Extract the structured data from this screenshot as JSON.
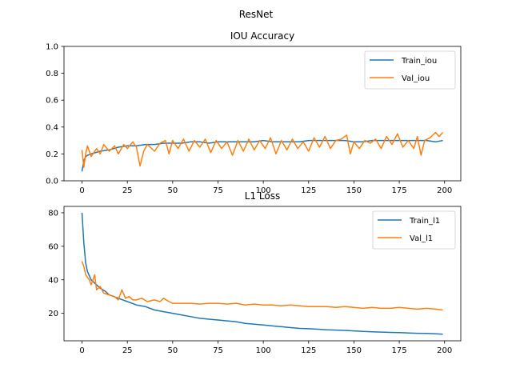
{
  "figure": {
    "suptitle": "ResNet"
  },
  "chart_data": [
    {
      "type": "line",
      "title": "IOU Accuracy",
      "xlabel": "",
      "ylabel": "",
      "xlim": [
        -9.95,
        208.95
      ],
      "ylim": [
        0.0,
        1.0
      ],
      "xticks": [
        0,
        25,
        50,
        75,
        100,
        125,
        150,
        175,
        200
      ],
      "yticks": [
        0.0,
        0.2,
        0.4,
        0.6,
        0.8,
        1.0
      ],
      "xtick_labels": [
        "0",
        "25",
        "50",
        "75",
        "100",
        "125",
        "150",
        "175",
        "200"
      ],
      "ytick_labels": [
        "0.0",
        "0.2",
        "0.4",
        "0.6",
        "0.8",
        "1.0"
      ],
      "grid": false,
      "legend": "upper-right",
      "series": [
        {
          "name": "Train_iou",
          "color": "#1f77b4",
          "points": [
            [
              0,
              0.07
            ],
            [
              1,
              0.15
            ],
            [
              2,
              0.18
            ],
            [
              3,
              0.19
            ],
            [
              5,
              0.2
            ],
            [
              10,
              0.22
            ],
            [
              15,
              0.23
            ],
            [
              20,
              0.25
            ],
            [
              25,
              0.26
            ],
            [
              30,
              0.26
            ],
            [
              35,
              0.27
            ],
            [
              40,
              0.27
            ],
            [
              45,
              0.28
            ],
            [
              50,
              0.28
            ],
            [
              55,
              0.28
            ],
            [
              60,
              0.29
            ],
            [
              65,
              0.29
            ],
            [
              70,
              0.28
            ],
            [
              75,
              0.29
            ],
            [
              80,
              0.29
            ],
            [
              85,
              0.29
            ],
            [
              90,
              0.29
            ],
            [
              95,
              0.29
            ],
            [
              100,
              0.3
            ],
            [
              105,
              0.29
            ],
            [
              110,
              0.29
            ],
            [
              115,
              0.29
            ],
            [
              120,
              0.29
            ],
            [
              125,
              0.3
            ],
            [
              130,
              0.3
            ],
            [
              135,
              0.3
            ],
            [
              140,
              0.3
            ],
            [
              145,
              0.3
            ],
            [
              150,
              0.29
            ],
            [
              155,
              0.29
            ],
            [
              160,
              0.3
            ],
            [
              165,
              0.3
            ],
            [
              170,
              0.3
            ],
            [
              175,
              0.3
            ],
            [
              180,
              0.3
            ],
            [
              185,
              0.3
            ],
            [
              190,
              0.3
            ],
            [
              195,
              0.29
            ],
            [
              199,
              0.3
            ]
          ]
        },
        {
          "name": "Val_iou",
          "color": "#ff7f0e",
          "points": [
            [
              0,
              0.23
            ],
            [
              1,
              0.1
            ],
            [
              2,
              0.2
            ],
            [
              3,
              0.26
            ],
            [
              5,
              0.18
            ],
            [
              8,
              0.24
            ],
            [
              10,
              0.2
            ],
            [
              12,
              0.27
            ],
            [
              15,
              0.22
            ],
            [
              18,
              0.26
            ],
            [
              20,
              0.2
            ],
            [
              23,
              0.27
            ],
            [
              25,
              0.24
            ],
            [
              28,
              0.29
            ],
            [
              30,
              0.25
            ],
            [
              32,
              0.11
            ],
            [
              34,
              0.22
            ],
            [
              36,
              0.27
            ],
            [
              40,
              0.22
            ],
            [
              43,
              0.28
            ],
            [
              46,
              0.3
            ],
            [
              48,
              0.2
            ],
            [
              50,
              0.3
            ],
            [
              53,
              0.24
            ],
            [
              56,
              0.31
            ],
            [
              59,
              0.22
            ],
            [
              62,
              0.3
            ],
            [
              65,
              0.25
            ],
            [
              68,
              0.31
            ],
            [
              71,
              0.21
            ],
            [
              74,
              0.3
            ],
            [
              77,
              0.24
            ],
            [
              80,
              0.29
            ],
            [
              83,
              0.19
            ],
            [
              86,
              0.3
            ],
            [
              89,
              0.22
            ],
            [
              92,
              0.31
            ],
            [
              95,
              0.23
            ],
            [
              98,
              0.3
            ],
            [
              101,
              0.24
            ],
            [
              104,
              0.32
            ],
            [
              107,
              0.2
            ],
            [
              110,
              0.3
            ],
            [
              113,
              0.23
            ],
            [
              116,
              0.31
            ],
            [
              119,
              0.24
            ],
            [
              122,
              0.29
            ],
            [
              125,
              0.22
            ],
            [
              128,
              0.32
            ],
            [
              131,
              0.25
            ],
            [
              134,
              0.33
            ],
            [
              137,
              0.24
            ],
            [
              140,
              0.3
            ],
            [
              143,
              0.31
            ],
            [
              146,
              0.34
            ],
            [
              148,
              0.2
            ],
            [
              150,
              0.29
            ],
            [
              153,
              0.24
            ],
            [
              156,
              0.3
            ],
            [
              159,
              0.28
            ],
            [
              162,
              0.31
            ],
            [
              165,
              0.24
            ],
            [
              168,
              0.33
            ],
            [
              171,
              0.27
            ],
            [
              174,
              0.35
            ],
            [
              177,
              0.25
            ],
            [
              180,
              0.3
            ],
            [
              183,
              0.24
            ],
            [
              185,
              0.33
            ],
            [
              187,
              0.19
            ],
            [
              189,
              0.3
            ],
            [
              192,
              0.32
            ],
            [
              195,
              0.36
            ],
            [
              197,
              0.33
            ],
            [
              199,
              0.36
            ]
          ]
        }
      ]
    },
    {
      "type": "line",
      "title": "L1 Loss",
      "xlabel": "",
      "ylabel": "",
      "xlim": [
        -9.95,
        208.95
      ],
      "ylim": [
        3.6,
        83.8
      ],
      "xticks": [
        0,
        25,
        50,
        75,
        100,
        125,
        150,
        175,
        200
      ],
      "yticks": [
        20,
        40,
        60,
        80
      ],
      "xtick_labels": [
        "0",
        "25",
        "50",
        "75",
        "100",
        "125",
        "150",
        "175",
        "200"
      ],
      "ytick_labels": [
        "20",
        "40",
        "60",
        "80"
      ],
      "grid": false,
      "legend": "upper-right",
      "series": [
        {
          "name": "Train_l1",
          "color": "#1f77b4",
          "points": [
            [
              0,
              80
            ],
            [
              1,
              62
            ],
            [
              2,
              50
            ],
            [
              3,
              45
            ],
            [
              5,
              40
            ],
            [
              7,
              38
            ],
            [
              10,
              35
            ],
            [
              13,
              33
            ],
            [
              15,
              31
            ],
            [
              20,
              29
            ],
            [
              25,
              27
            ],
            [
              30,
              25
            ],
            [
              35,
              24
            ],
            [
              40,
              22
            ],
            [
              45,
              21
            ],
            [
              50,
              20
            ],
            [
              55,
              19
            ],
            [
              60,
              18
            ],
            [
              65,
              17
            ],
            [
              70,
              16.5
            ],
            [
              75,
              16
            ],
            [
              80,
              15.5
            ],
            [
              85,
              15
            ],
            [
              90,
              14
            ],
            [
              95,
              13.5
            ],
            [
              100,
              13
            ],
            [
              105,
              12.5
            ],
            [
              110,
              12
            ],
            [
              115,
              11.5
            ],
            [
              120,
              11
            ],
            [
              125,
              10.8
            ],
            [
              130,
              10.5
            ],
            [
              135,
              10.2
            ],
            [
              140,
              10
            ],
            [
              145,
              9.8
            ],
            [
              150,
              9.5
            ],
            [
              155,
              9.2
            ],
            [
              160,
              9
            ],
            [
              165,
              8.8
            ],
            [
              170,
              8.6
            ],
            [
              175,
              8.5
            ],
            [
              180,
              8.3
            ],
            [
              185,
              8.1
            ],
            [
              190,
              8
            ],
            [
              195,
              7.8
            ],
            [
              199,
              7.5
            ]
          ]
        },
        {
          "name": "Val_l1",
          "color": "#ff7f0e",
          "points": [
            [
              0,
              51
            ],
            [
              1,
              48
            ],
            [
              2,
              43
            ],
            [
              4,
              40
            ],
            [
              5,
              37
            ],
            [
              7,
              43
            ],
            [
              8,
              34
            ],
            [
              10,
              36
            ],
            [
              12,
              32
            ],
            [
              15,
              31
            ],
            [
              18,
              30
            ],
            [
              20,
              28
            ],
            [
              22,
              34
            ],
            [
              24,
              29
            ],
            [
              26,
              30
            ],
            [
              28,
              28
            ],
            [
              30,
              28
            ],
            [
              33,
              29
            ],
            [
              36,
              27
            ],
            [
              40,
              28
            ],
            [
              43,
              27
            ],
            [
              45,
              29
            ],
            [
              48,
              27
            ],
            [
              50,
              26
            ],
            [
              55,
              26
            ],
            [
              60,
              26
            ],
            [
              65,
              25.5
            ],
            [
              70,
              26
            ],
            [
              75,
              26
            ],
            [
              80,
              25.5
            ],
            [
              85,
              26
            ],
            [
              90,
              25
            ],
            [
              95,
              25.5
            ],
            [
              100,
              25
            ],
            [
              105,
              25
            ],
            [
              110,
              24.5
            ],
            [
              115,
              25
            ],
            [
              120,
              24.5
            ],
            [
              125,
              24
            ],
            [
              130,
              24
            ],
            [
              135,
              24
            ],
            [
              140,
              23.5
            ],
            [
              145,
              24
            ],
            [
              150,
              23.5
            ],
            [
              155,
              23
            ],
            [
              160,
              23.5
            ],
            [
              165,
              23
            ],
            [
              170,
              23
            ],
            [
              175,
              23.5
            ],
            [
              180,
              23
            ],
            [
              185,
              22.5
            ],
            [
              190,
              23
            ],
            [
              195,
              22.5
            ],
            [
              199,
              22
            ]
          ]
        }
      ]
    }
  ]
}
